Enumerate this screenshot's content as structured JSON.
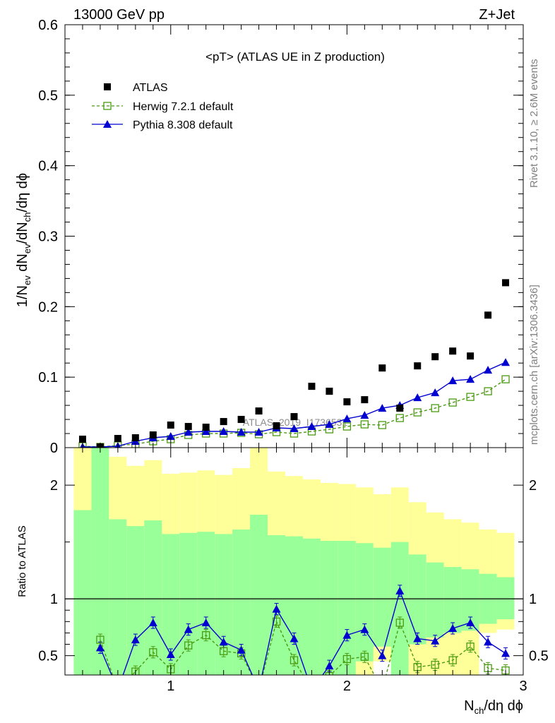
{
  "header": {
    "left": "13000 GeV pp",
    "right": "Z+Jet"
  },
  "side_text": {
    "rivet": "Rivet 3.1.10, ≥ 2.6M events",
    "mcplots": "mcplots.cern.ch [arXiv:1306.3436]"
  },
  "watermark": "ATLAS_2019_I1736531",
  "chart_data": [
    {
      "type": "scatter",
      "title": "<pT> (ATLAS UE in Z production)",
      "ylabel": "1/N_ev dN_ev/dN_ch/dη dϕ",
      "xlabel": "N_ch/dη dϕ",
      "xlim": [
        0.4,
        3.0
      ],
      "ylim": [
        0,
        0.6
      ],
      "xticks": [
        1,
        2,
        3
      ],
      "yticks": [
        0,
        0.1,
        0.2,
        0.3,
        0.4,
        0.5,
        0.6
      ],
      "ytick_labels": [
        "0",
        "0.1",
        "0.2",
        "0.3",
        "0.4",
        "0.5",
        "0.6"
      ],
      "legend": [
        "ATLAS",
        "Herwig 7.2.1 default",
        "Pythia 8.308 default"
      ],
      "legend_position": "top-left",
      "x": [
        0.5,
        0.6,
        0.7,
        0.8,
        0.9,
        1.0,
        1.1,
        1.2,
        1.3,
        1.4,
        1.5,
        1.6,
        1.7,
        1.8,
        1.9,
        2.0,
        2.1,
        2.2,
        2.3,
        2.4,
        2.5,
        2.6,
        2.7,
        2.8,
        2.9
      ],
      "series": [
        {
          "name": "ATLAS",
          "color": "#000000",
          "values": [
            0.012,
            0.001,
            0.013,
            0.014,
            0.018,
            0.032,
            0.03,
            0.029,
            0.037,
            0.04,
            0.052,
            0.031,
            0.044,
            0.087,
            0.08,
            0.065,
            0.068,
            0.113,
            0.056,
            0.116,
            0.129,
            0.137,
            0.13,
            0.188,
            0.234
          ]
        },
        {
          "name": "Herwig 7.2.1 default",
          "color": "#4b9b12",
          "values": [
            0.002,
            0.001,
            0.003,
            0.005,
            0.009,
            0.012,
            0.018,
            0.02,
            0.02,
            0.021,
            0.019,
            0.022,
            0.02,
            0.023,
            0.026,
            0.03,
            0.033,
            0.032,
            0.042,
            0.05,
            0.056,
            0.064,
            0.072,
            0.08,
            0.097
          ]
        },
        {
          "name": "Pythia 8.308 default",
          "color": "#0000d0",
          "values": [
            0.001,
            0.001,
            0.002,
            0.009,
            0.014,
            0.016,
            0.022,
            0.023,
            0.023,
            0.022,
            0.022,
            0.028,
            0.027,
            0.03,
            0.033,
            0.041,
            0.046,
            0.056,
            0.06,
            0.071,
            0.078,
            0.095,
            0.097,
            0.11,
            0.121
          ]
        }
      ]
    },
    {
      "type": "line",
      "ylabel": "Ratio to ATLAS",
      "xlim": [
        0.4,
        3.0
      ],
      "ylim": [
        0.33,
        2.33
      ],
      "yticks": [
        0.5,
        1,
        2
      ],
      "ytick_labels": [
        "0.5",
        "1",
        "2"
      ],
      "reference_line": 1,
      "bands": {
        "x_edges": [
          0.45,
          0.55,
          0.65,
          0.75,
          0.85,
          0.95,
          1.05,
          1.15,
          1.25,
          1.35,
          1.45,
          1.55,
          1.65,
          1.75,
          1.85,
          1.95,
          2.05,
          2.15,
          2.25,
          2.35,
          2.45,
          2.55,
          2.65,
          2.75,
          2.85,
          2.95
        ],
        "yellow_color": "#ffff99",
        "green_color": "#99ff99",
        "yellow_hi": [
          2.33,
          2.33,
          2.25,
          2.17,
          2.22,
          2.1,
          2.11,
          2.13,
          2.09,
          2.15,
          2.33,
          2.12,
          2.08,
          2.05,
          2.02,
          2.01,
          1.98,
          1.92,
          1.98,
          1.85,
          1.76,
          1.7,
          1.67,
          1.61,
          1.58
        ],
        "yellow_lo": [
          0.33,
          0.33,
          0.33,
          0.33,
          0.33,
          0.47,
          0.55,
          0.54,
          0.52,
          0.5,
          0.33,
          0.33,
          0.33,
          0.33,
          0.33,
          0.33,
          0.33,
          0.45,
          0.33,
          0.33,
          0.33,
          0.33,
          0.33,
          0.7,
          0.73
        ],
        "green_hi": [
          1.78,
          2.33,
          1.7,
          1.64,
          1.69,
          1.57,
          1.58,
          1.59,
          1.57,
          1.61,
          1.74,
          1.56,
          1.55,
          1.53,
          1.51,
          1.51,
          1.49,
          1.45,
          1.5,
          1.39,
          1.32,
          1.28,
          1.26,
          1.22,
          1.19
        ],
        "green_lo": [
          0.33,
          0.33,
          0.33,
          0.33,
          0.33,
          0.33,
          0.33,
          0.33,
          0.33,
          0.33,
          0.33,
          0.33,
          0.33,
          0.33,
          0.33,
          0.33,
          0.45,
          0.58,
          0.33,
          0.6,
          0.66,
          0.7,
          0.72,
          0.78,
          0.82
        ]
      },
      "x": [
        0.5,
        0.6,
        0.7,
        0.8,
        0.9,
        1.0,
        1.1,
        1.2,
        1.3,
        1.4,
        1.5,
        1.6,
        1.7,
        1.8,
        1.9,
        2.0,
        2.1,
        2.2,
        2.3,
        2.4,
        2.5,
        2.6,
        2.7,
        2.8,
        2.9
      ],
      "series": [
        {
          "name": "Herwig 7.2.1 default",
          "color": "#4b9b12",
          "values": [
            null,
            0.64,
            0.2,
            0.36,
            0.53,
            0.38,
            0.59,
            0.68,
            0.54,
            0.52,
            0.2,
            0.8,
            0.46,
            0.2,
            0.32,
            0.47,
            0.49,
            0.2,
            0.79,
            0.4,
            0.42,
            0.46,
            0.58,
            0.39,
            0.37
          ]
        },
        {
          "name": "Pythia 8.308 default",
          "color": "#0000d0",
          "values": [
            null,
            0.57,
            0.2,
            0.64,
            0.79,
            0.51,
            0.73,
            0.79,
            0.62,
            0.55,
            0.2,
            0.91,
            0.65,
            0.2,
            0.41,
            0.68,
            0.73,
            0.5,
            1.07,
            0.65,
            0.63,
            0.74,
            0.79,
            0.62,
            0.52
          ]
        }
      ]
    }
  ]
}
